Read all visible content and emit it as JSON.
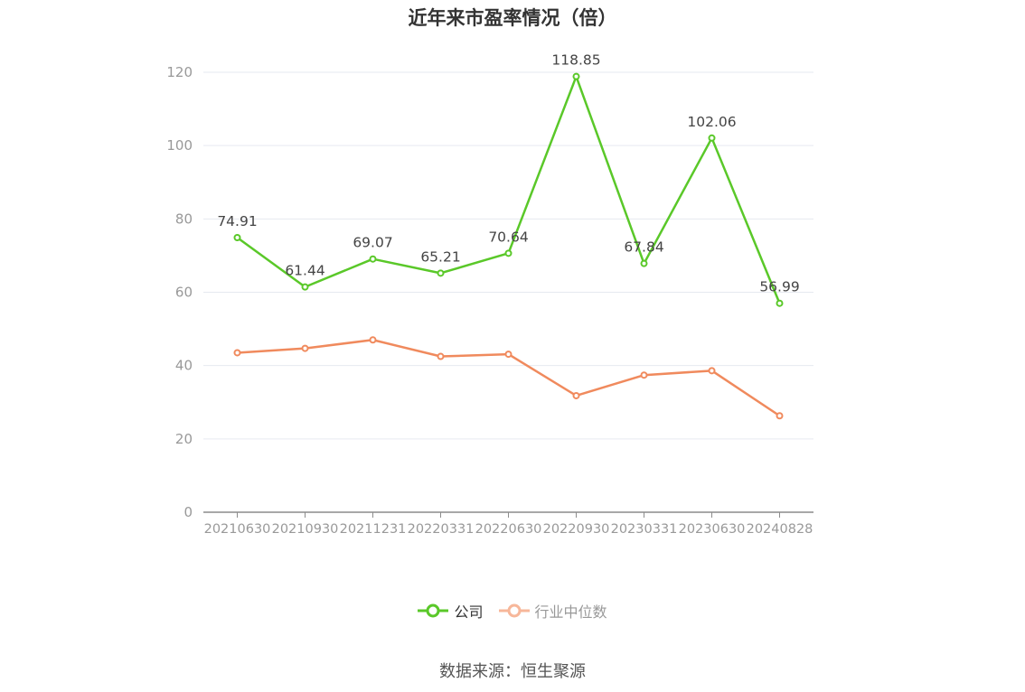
{
  "title": "近年来市盈率情况（倍）",
  "source": "数据来源：恒生聚源",
  "colors": {
    "company": "#5ac829",
    "industry": "#f08a5d",
    "industry_legend": "#f7b79a",
    "grid": "#e6e9f0",
    "axis": "#8c8c8c",
    "tick_text": "#999999",
    "label_text": "#444444"
  },
  "chart_data": {
    "type": "line",
    "title": "近年来市盈率情况（倍）",
    "categories": [
      "20210630",
      "20210930",
      "20211231",
      "20220331",
      "20220630",
      "20220930",
      "20230331",
      "20230630",
      "20240828"
    ],
    "series": [
      {
        "name": "公司",
        "values": [
          74.91,
          61.44,
          69.07,
          65.21,
          70.64,
          118.85,
          67.84,
          102.06,
          56.99
        ],
        "labels": [
          "74.91",
          "61.44",
          "69.07",
          "65.21",
          "70.64",
          "118.85",
          "67.84",
          "102.06",
          "56.99"
        ]
      },
      {
        "name": "行业中位数",
        "values": [
          43.5,
          44.7,
          47.0,
          42.5,
          43.1,
          31.8,
          37.4,
          38.6,
          26.3
        ]
      }
    ],
    "ylim": [
      0,
      120
    ],
    "yticks": [
      0,
      20,
      40,
      60,
      80,
      100,
      120
    ],
    "grid": true,
    "legend_position": "bottom-center"
  },
  "legend": {
    "company_label": "公司",
    "industry_label": "行业中位数"
  }
}
